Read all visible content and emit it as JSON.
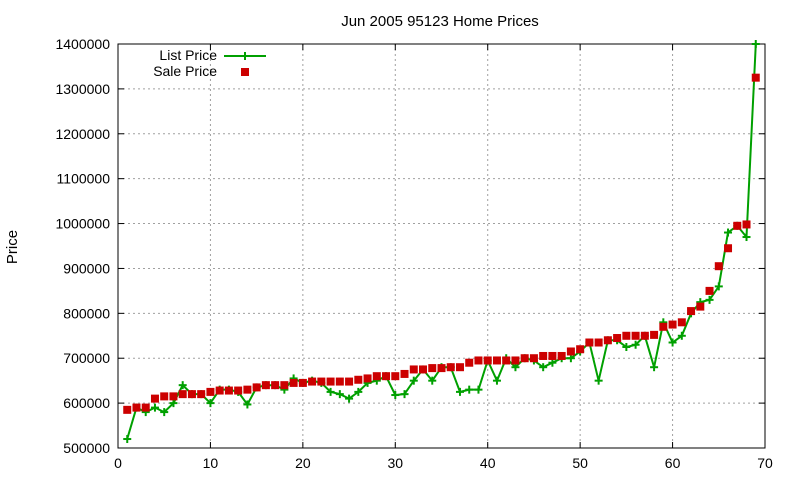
{
  "chart_data": {
    "type": "line",
    "title": "Jun 2005 95123 Home Prices",
    "xlabel": "",
    "ylabel": "Price",
    "xlim": [
      0,
      70
    ],
    "ylim": [
      500000,
      1400000
    ],
    "xticks": [
      "0",
      "10",
      "20",
      "30",
      "40",
      "50",
      "60",
      "70"
    ],
    "yticks": [
      "500000",
      "600000",
      "700000",
      "800000",
      "900000",
      "1000000",
      "1100000",
      "1200000",
      "1300000",
      "1400000"
    ],
    "grid": true,
    "legend_position": "top-left",
    "x": [
      1,
      2,
      3,
      4,
      5,
      6,
      7,
      8,
      9,
      10,
      11,
      12,
      13,
      14,
      15,
      16,
      17,
      18,
      19,
      20,
      21,
      22,
      23,
      24,
      25,
      26,
      27,
      28,
      29,
      30,
      31,
      32,
      33,
      34,
      35,
      36,
      37,
      38,
      39,
      40,
      41,
      42,
      43,
      44,
      45,
      46,
      47,
      48,
      49,
      50,
      51,
      52,
      53,
      54,
      55,
      56,
      57,
      58,
      59,
      60,
      61,
      62,
      63,
      64,
      65,
      66,
      67,
      68,
      69
    ],
    "series": [
      {
        "name": "List Price",
        "style": "line+cross",
        "color": "#00a000",
        "values": [
          520000,
          590000,
          580000,
          590000,
          580000,
          600000,
          640000,
          620000,
          620000,
          600000,
          630000,
          630000,
          625000,
          597000,
          635000,
          640000,
          640000,
          630000,
          655000,
          645000,
          650000,
          645000,
          625000,
          620000,
          610000,
          625000,
          645000,
          650000,
          660000,
          618000,
          620000,
          650000,
          675000,
          650000,
          680000,
          680000,
          625000,
          630000,
          630000,
          695000,
          650000,
          700000,
          680000,
          700000,
          695000,
          680000,
          690000,
          700000,
          700000,
          715000,
          735000,
          650000,
          740000,
          740000,
          725000,
          730000,
          750000,
          680000,
          780000,
          735000,
          750000,
          800000,
          825000,
          830000,
          860000,
          980000,
          995000,
          970000,
          1400000
        ]
      },
      {
        "name": "Sale Price",
        "style": "square",
        "color": "#cc0000",
        "values": [
          585000,
          590000,
          590000,
          610000,
          615000,
          615000,
          620000,
          620000,
          620000,
          625000,
          628000,
          628000,
          628000,
          630000,
          635000,
          640000,
          640000,
          640000,
          645000,
          645000,
          648000,
          648000,
          648000,
          648000,
          648000,
          652000,
          655000,
          660000,
          660000,
          660000,
          665000,
          675000,
          675000,
          678000,
          678000,
          680000,
          680000,
          690000,
          695000,
          695000,
          695000,
          695000,
          695000,
          700000,
          700000,
          705000,
          705000,
          705000,
          715000,
          720000,
          735000,
          735000,
          740000,
          745000,
          750000,
          750000,
          750000,
          752000,
          770000,
          775000,
          780000,
          805000,
          815000,
          850000,
          905000,
          945000,
          995000,
          998000,
          1325000
        ]
      }
    ]
  }
}
